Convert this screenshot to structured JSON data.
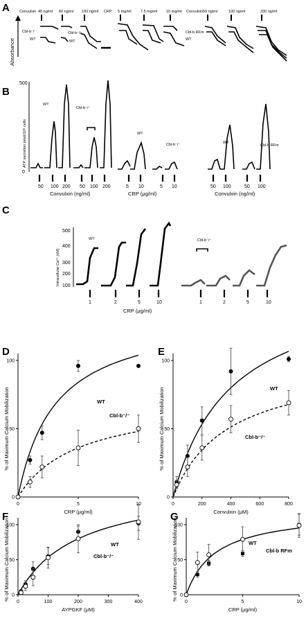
{
  "panels": {
    "A": {
      "label": "A",
      "ylabel": "Absorbance",
      "top_labels": [
        {
          "text": "Convulxin"
        },
        {
          "text": "40 ng/ml"
        },
        {
          "text": "60 ng/ml"
        },
        {
          "text": "100 ng/ml"
        },
        {
          "text": "CRP"
        },
        {
          "text": "5 mg/ml"
        },
        {
          "text": "7.5 mg/ml"
        },
        {
          "text": "10 mg/ml"
        },
        {
          "text": "Convulxin"
        },
        {
          "text": "50 ng/ml"
        },
        {
          "text": "100 ng/ml"
        },
        {
          "text": "200 ng/ml"
        }
      ],
      "trace_labels": [
        {
          "text": "Cbl-b⁻/⁻"
        },
        {
          "text": "WT"
        },
        {
          "text": "Cbl-b⁻/⁻"
        },
        {
          "text": "WT"
        },
        {
          "text": "Cbl-b RFm"
        },
        {
          "text": "WT"
        }
      ]
    },
    "B": {
      "label": "B",
      "ylabel": "ATP secretion pmol/10⁸ cells",
      "y_ticks": [
        "500",
        "0"
      ],
      "group_labels": [
        "WT",
        "Cbl-b⁻/⁻",
        "WT",
        "Cbl-b⁻/⁻",
        "WT",
        "Cbl-b RFm"
      ],
      "x_ticks": [
        "50",
        "100",
        "200",
        "50",
        "100",
        "200",
        "5",
        "10",
        "5",
        "10",
        "50",
        "100",
        "50",
        "100"
      ],
      "x_groups": [
        "Convulxin (ng/ml)",
        "CRP (μg/ml)",
        "Convulxin (ng/ml)"
      ]
    },
    "C": {
      "label": "C",
      "ylabel": "Intracellular Ca²⁺ (nM)",
      "y_ticks": [
        "500",
        "400",
        "300",
        "200",
        "100"
      ],
      "group_labels": [
        "WT",
        "Cbl-b⁻/⁻"
      ],
      "x_ticks": [
        "1",
        "2",
        "5",
        "10",
        "1",
        "2",
        "5",
        "10"
      ],
      "xlabel": "CRP (μg/ml)"
    }
  },
  "chart_data": [
    {
      "panel": "D",
      "type": "scatter",
      "xlabel": "CRP (μg/ml)",
      "ylabel": "% of Maximum Calcium Mobilization",
      "xlim": [
        0,
        10
      ],
      "ylim": [
        0,
        100
      ],
      "x_ticks": [
        0,
        5,
        10
      ],
      "y_ticks": [
        0,
        50,
        100
      ],
      "series": [
        {
          "name": "WT",
          "marker": "filled",
          "line": "solid",
          "x": [
            0,
            1,
            2,
            5,
            10
          ],
          "y": [
            0,
            27,
            47,
            96,
            96
          ],
          "err": [
            0,
            3,
            5,
            4,
            0
          ]
        },
        {
          "name": "Cbl-b⁻/⁻",
          "marker": "open",
          "line": "dashed",
          "x": [
            0,
            1,
            2,
            5,
            10
          ],
          "y": [
            0,
            11,
            22,
            36,
            50
          ],
          "err": [
            0,
            4,
            8,
            13,
            10
          ]
        }
      ],
      "fits": [
        {
          "series": "WT",
          "vmax": 136,
          "k": 3.1
        },
        {
          "series": "Cbl-b⁻/⁻",
          "vmax": 72,
          "k": 5.0
        }
      ]
    },
    {
      "panel": "E",
      "type": "scatter",
      "xlabel": "Convulxin (μM)",
      "ylabel": "% of Maximum Calcium Mobilization",
      "xlim": [
        0,
        800
      ],
      "ylim": [
        0,
        100
      ],
      "x_ticks": [
        0,
        200,
        400,
        600,
        800
      ],
      "y_ticks": [
        0,
        50,
        100
      ],
      "series": [
        {
          "name": "WT",
          "marker": "filled",
          "line": "solid",
          "x": [
            25,
            100,
            200,
            400,
            800
          ],
          "y": [
            11,
            30,
            56,
            92,
            101
          ],
          "err": [
            4,
            8,
            10,
            17,
            2
          ]
        },
        {
          "name": "Cbl-b⁻/⁻",
          "marker": "open",
          "line": "dashed",
          "x": [
            25,
            100,
            200,
            400,
            800
          ],
          "y": [
            9,
            22,
            36,
            57,
            69
          ],
          "err": [
            3,
            7,
            9,
            10,
            9
          ]
        }
      ],
      "fits": [
        {
          "series": "WT",
          "vmax": 160,
          "k": 400
        },
        {
          "series": "Cbl-b⁻/⁻",
          "vmax": 100,
          "k": 380
        }
      ]
    },
    {
      "panel": "F",
      "type": "scatter",
      "xlabel": "AYPGKF (μM)",
      "ylabel": "% of Maximum Calcium Mobilization",
      "xlim": [
        0,
        400
      ],
      "ylim": [
        0,
        100
      ],
      "x_ticks": [
        0,
        100,
        200,
        300,
        400
      ],
      "y_ticks": [
        0,
        50,
        100
      ],
      "series": [
        {
          "name": "WT",
          "marker": "filled",
          "line": "solid",
          "x": [
            10,
            25,
            50,
            100,
            200,
            400
          ],
          "y": [
            5,
            15,
            37,
            55,
            90,
            102
          ],
          "err": [
            2,
            5,
            10,
            12,
            8,
            10
          ]
        },
        {
          "name": "Cbl-b⁻/⁻",
          "marker": "open",
          "line": "solid",
          "x": [
            10,
            25,
            50,
            100,
            200,
            400
          ],
          "y": [
            3,
            12,
            25,
            53,
            80,
            104
          ],
          "err": [
            2,
            6,
            12,
            15,
            20,
            25
          ]
        }
      ],
      "fits": [
        {
          "series": "WT",
          "vmax": 160,
          "k": 200
        }
      ]
    },
    {
      "panel": "G",
      "type": "scatter",
      "xlabel": "CRP (μg/ml)",
      "ylabel": "% of Maximum Calcium Mobilization",
      "xlim": [
        0,
        10
      ],
      "ylim": [
        0,
        100
      ],
      "x_ticks": [
        0,
        5,
        10
      ],
      "y_ticks": [
        0,
        50,
        100
      ],
      "series": [
        {
          "name": "WT",
          "marker": "filled-square",
          "line": "solid",
          "x": [
            0,
            1,
            2,
            5,
            10
          ],
          "y": [
            0,
            29,
            45,
            59,
            100
          ],
          "err": [
            0,
            4,
            4,
            4,
            15
          ]
        },
        {
          "name": "Cbl-b RFm",
          "marker": "open",
          "line": "solid",
          "x": [
            0,
            1,
            2,
            5,
            10
          ],
          "y": [
            0,
            46,
            57,
            79,
            99
          ],
          "err": [
            0,
            15,
            15,
            18,
            17
          ]
        }
      ],
      "fits": [
        {
          "series": "WT",
          "vmax": 120,
          "k": 2.6
        }
      ]
    }
  ]
}
